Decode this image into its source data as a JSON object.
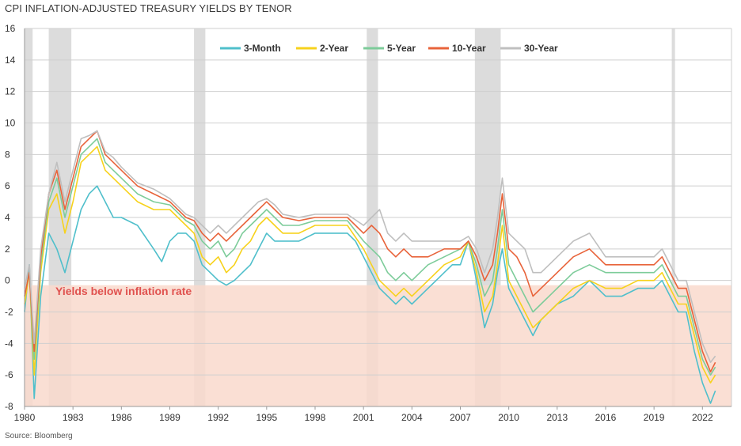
{
  "title": "CPI INFLATION-ADJUSTED TREASURY YIELDS BY TENOR",
  "source": "Source: Bloomberg",
  "chart_data": {
    "type": "line",
    "title": "CPI INFLATION-ADJUSTED TREASURY YIELDS BY TENOR",
    "xlabel": "",
    "ylabel": "",
    "xlim": [
      1980,
      2023.8
    ],
    "ylim": [
      -8,
      16
    ],
    "x_ticks": [
      "1980",
      "1983",
      "1986",
      "1989",
      "1992",
      "1995",
      "1998",
      "2001",
      "2004",
      "2007",
      "2010",
      "2013",
      "2016",
      "2019",
      "2022"
    ],
    "y_ticks": [
      "16",
      "14",
      "12",
      "10",
      "8",
      "6",
      "4",
      "2",
      "0",
      "-2",
      "-4",
      "-6",
      "-8"
    ],
    "grid": true,
    "legend_position": "top-center",
    "annotation": "Yields below inflation rate",
    "shaded_region": {
      "label": "Yields below inflation rate",
      "y_from": 0,
      "y_to": -8,
      "color": "#f9d9cc"
    },
    "recessions": [
      [
        1980.0,
        1980.5
      ],
      [
        1981.5,
        1982.9
      ],
      [
        1990.5,
        1991.2
      ],
      [
        2001.2,
        2001.9
      ],
      [
        2007.9,
        2009.5
      ],
      [
        2020.1,
        2020.3
      ]
    ],
    "series": [
      {
        "name": "3-Month",
        "color": "#4fbfcb",
        "x": [
          1980.0,
          1980.3,
          1980.6,
          1981.0,
          1981.5,
          1982.0,
          1982.5,
          1983.0,
          1983.5,
          1984.0,
          1984.5,
          1985.0,
          1985.5,
          1986.0,
          1987.0,
          1988.0,
          1988.5,
          1989.0,
          1989.5,
          1990.0,
          1990.5,
          1991.0,
          1991.5,
          1992.0,
          1992.5,
          1993.0,
          1993.5,
          1994.0,
          1994.5,
          1995.0,
          1995.5,
          1996.0,
          1997.0,
          1998.0,
          1999.0,
          2000.0,
          2000.5,
          2001.0,
          2001.5,
          2002.0,
          2002.5,
          2003.0,
          2003.5,
          2004.0,
          2004.5,
          2005.0,
          2005.5,
          2006.0,
          2006.5,
          2007.0,
          2007.5,
          2008.0,
          2008.5,
          2009.0,
          2009.3,
          2009.6,
          2010.0,
          2010.5,
          2011.0,
          2011.5,
          2012.0,
          2012.5,
          2013.0,
          2014.0,
          2015.0,
          2016.0,
          2017.0,
          2018.0,
          2019.0,
          2019.5,
          2020.0,
          2020.5,
          2021.0,
          2021.5,
          2022.0,
          2022.5,
          2022.8
        ],
        "y": [
          -2.0,
          1.0,
          -7.5,
          -1.0,
          3.0,
          2.0,
          0.5,
          2.5,
          4.5,
          5.5,
          6.0,
          5.0,
          4.0,
          4.0,
          3.5,
          2.0,
          1.2,
          2.5,
          3.0,
          3.0,
          2.5,
          1.0,
          0.5,
          0.0,
          -0.3,
          0.0,
          0.5,
          1.0,
          2.0,
          3.0,
          2.5,
          2.5,
          2.5,
          3.0,
          3.0,
          3.0,
          2.5,
          1.5,
          0.5,
          -0.5,
          -1.0,
          -1.5,
          -1.0,
          -1.5,
          -1.0,
          -0.5,
          0.0,
          0.5,
          1.0,
          1.0,
          2.5,
          0.0,
          -3.0,
          -1.5,
          0.5,
          2.0,
          -0.5,
          -1.5,
          -2.5,
          -3.5,
          -2.5,
          -2.0,
          -1.5,
          -1.0,
          0.0,
          -1.0,
          -1.0,
          -0.5,
          -0.5,
          0.0,
          -1.0,
          -2.0,
          -2.0,
          -4.5,
          -6.5,
          -7.8,
          -7.0
        ]
      },
      {
        "name": "2-Year",
        "color": "#f7d21c",
        "x": [
          1980.0,
          1980.3,
          1980.6,
          1981.0,
          1981.5,
          1982.0,
          1982.5,
          1983.0,
          1983.5,
          1984.0,
          1984.5,
          1985.0,
          1985.5,
          1986.0,
          1987.0,
          1988.0,
          1989.0,
          1990.0,
          1990.5,
          1991.0,
          1991.5,
          1992.0,
          1992.5,
          1993.0,
          1993.5,
          1994.0,
          1994.5,
          1995.0,
          1995.5,
          1996.0,
          1997.0,
          1998.0,
          1999.0,
          2000.0,
          2001.0,
          2001.5,
          2002.0,
          2002.5,
          2003.0,
          2003.5,
          2004.0,
          2004.5,
          2005.0,
          2006.0,
          2007.0,
          2007.5,
          2008.0,
          2008.5,
          2009.0,
          2009.3,
          2009.6,
          2010.0,
          2010.5,
          2011.0,
          2011.5,
          2012.0,
          2012.5,
          2013.0,
          2014.0,
          2015.0,
          2016.0,
          2017.0,
          2018.0,
          2019.0,
          2019.5,
          2020.0,
          2020.5,
          2021.0,
          2021.5,
          2022.0,
          2022.5,
          2022.8
        ],
        "y": [
          -1.5,
          0.5,
          -6.0,
          0.5,
          4.5,
          5.5,
          3.0,
          5.0,
          7.5,
          8.0,
          8.5,
          7.0,
          6.5,
          6.0,
          5.0,
          4.5,
          4.5,
          3.5,
          3.0,
          1.5,
          1.0,
          1.5,
          0.5,
          1.0,
          2.0,
          2.5,
          3.5,
          4.0,
          3.5,
          3.0,
          3.0,
          3.5,
          3.5,
          3.5,
          2.0,
          1.0,
          0.0,
          -0.5,
          -1.0,
          -0.5,
          -1.0,
          -0.5,
          0.0,
          1.0,
          1.5,
          2.5,
          0.5,
          -2.0,
          -1.0,
          1.0,
          3.5,
          0.0,
          -1.0,
          -2.0,
          -3.0,
          -2.5,
          -2.0,
          -1.5,
          -0.5,
          0.0,
          -0.5,
          -0.5,
          0.0,
          0.0,
          0.5,
          -0.5,
          -1.5,
          -1.5,
          -3.5,
          -5.5,
          -6.5,
          -6.0
        ]
      },
      {
        "name": "5-Year",
        "color": "#7dcc9a",
        "x": [
          1980.0,
          1980.3,
          1980.6,
          1981.0,
          1981.5,
          1982.0,
          1982.5,
          1983.0,
          1983.5,
          1984.0,
          1984.5,
          1985.0,
          1985.5,
          1986.0,
          1987.0,
          1988.0,
          1989.0,
          1990.0,
          1990.5,
          1991.0,
          1991.5,
          1992.0,
          1992.5,
          1993.0,
          1993.5,
          1994.0,
          1994.5,
          1995.0,
          1995.5,
          1996.0,
          1997.0,
          1998.0,
          1999.0,
          2000.0,
          2001.0,
          2001.5,
          2002.0,
          2002.5,
          2003.0,
          2003.5,
          2004.0,
          2004.5,
          2005.0,
          2006.0,
          2007.0,
          2007.5,
          2008.0,
          2008.5,
          2009.0,
          2009.3,
          2009.6,
          2010.0,
          2010.5,
          2011.0,
          2011.5,
          2012.0,
          2012.5,
          2013.0,
          2014.0,
          2015.0,
          2016.0,
          2017.0,
          2018.0,
          2019.0,
          2019.5,
          2020.0,
          2020.5,
          2021.0,
          2021.5,
          2022.0,
          2022.5,
          2022.8
        ],
        "y": [
          -1.0,
          0.5,
          -5.0,
          1.0,
          5.0,
          6.5,
          4.0,
          6.0,
          8.0,
          8.5,
          9.0,
          7.5,
          7.0,
          6.5,
          5.5,
          5.0,
          4.8,
          3.8,
          3.5,
          2.5,
          2.0,
          2.5,
          1.5,
          2.0,
          3.0,
          3.5,
          4.0,
          4.5,
          4.0,
          3.5,
          3.5,
          3.8,
          3.8,
          3.8,
          2.5,
          2.0,
          1.5,
          0.5,
          0.0,
          0.5,
          0.0,
          0.5,
          1.0,
          1.5,
          2.0,
          2.5,
          1.0,
          -1.0,
          0.0,
          2.0,
          4.5,
          1.0,
          0.0,
          -1.0,
          -2.0,
          -1.5,
          -1.0,
          -0.5,
          0.5,
          1.0,
          0.5,
          0.5,
          0.5,
          0.5,
          1.0,
          0.0,
          -1.0,
          -1.0,
          -3.0,
          -5.0,
          -6.0,
          -5.5
        ]
      },
      {
        "name": "10-Year",
        "color": "#e8633a",
        "x": [
          1980.0,
          1980.3,
          1980.6,
          1981.0,
          1981.5,
          1982.0,
          1982.5,
          1983.0,
          1983.5,
          1984.0,
          1984.5,
          1985.0,
          1985.5,
          1986.0,
          1987.0,
          1988.0,
          1989.0,
          1990.0,
          1990.5,
          1991.0,
          1991.5,
          1992.0,
          1992.5,
          1993.0,
          1993.5,
          1994.0,
          1994.5,
          1995.0,
          1995.5,
          1996.0,
          1997.0,
          1998.0,
          1999.0,
          2000.0,
          2001.0,
          2001.5,
          2002.0,
          2002.5,
          2003.0,
          2003.5,
          2004.0,
          2004.5,
          2005.0,
          2006.0,
          2007.0,
          2007.5,
          2008.0,
          2008.5,
          2009.0,
          2009.3,
          2009.6,
          2010.0,
          2010.5,
          2011.0,
          2011.5,
          2012.0,
          2012.5,
          2013.0,
          2014.0,
          2015.0,
          2016.0,
          2017.0,
          2018.0,
          2019.0,
          2019.5,
          2020.0,
          2020.5,
          2021.0,
          2021.5,
          2022.0,
          2022.5,
          2022.8
        ],
        "y": [
          -1.0,
          0.5,
          -4.5,
          1.5,
          5.5,
          7.0,
          4.5,
          6.5,
          8.5,
          9.0,
          9.5,
          8.0,
          7.5,
          7.0,
          6.0,
          5.5,
          5.0,
          4.0,
          3.8,
          3.0,
          2.5,
          3.0,
          2.5,
          3.0,
          3.5,
          4.0,
          4.5,
          5.0,
          4.5,
          4.0,
          3.8,
          4.0,
          4.0,
          4.0,
          3.0,
          3.5,
          3.0,
          2.0,
          1.5,
          2.0,
          1.5,
          1.5,
          1.5,
          2.0,
          2.0,
          2.5,
          1.5,
          0.0,
          1.0,
          3.0,
          5.5,
          2.0,
          1.5,
          0.5,
          -1.0,
          -0.5,
          0.0,
          0.5,
          1.5,
          2.0,
          1.0,
          1.0,
          1.0,
          1.0,
          1.5,
          0.5,
          -0.5,
          -0.5,
          -2.5,
          -4.5,
          -5.8,
          -5.2
        ]
      },
      {
        "name": "30-Year",
        "color": "#bfbfbf",
        "x": [
          1980.0,
          1980.3,
          1980.6,
          1981.0,
          1981.5,
          1982.0,
          1982.5,
          1983.0,
          1983.5,
          1984.0,
          1984.5,
          1985.0,
          1985.5,
          1986.0,
          1987.0,
          1988.0,
          1989.0,
          1990.0,
          1990.5,
          1991.0,
          1991.5,
          1992.0,
          1992.5,
          1993.0,
          1993.5,
          1994.0,
          1994.5,
          1995.0,
          1995.5,
          1996.0,
          1997.0,
          1998.0,
          1999.0,
          2000.0,
          2001.0,
          2001.5,
          2002.0,
          2002.5,
          2003.0,
          2003.5,
          2004.0,
          2004.5,
          2005.0,
          2006.0,
          2007.0,
          2007.5,
          2008.0,
          2008.5,
          2009.0,
          2009.3,
          2009.6,
          2010.0,
          2010.5,
          2011.0,
          2011.5,
          2012.0,
          2012.5,
          2013.0,
          2014.0,
          2015.0,
          2016.0,
          2017.0,
          2018.0,
          2019.0,
          2019.5,
          2020.0,
          2020.5,
          2021.0,
          2021.5,
          2022.0,
          2022.5,
          2022.8
        ],
        "y": [
          -0.5,
          1.0,
          -4.0,
          2.0,
          5.5,
          7.5,
          5.0,
          7.0,
          9.0,
          9.2,
          9.5,
          8.2,
          7.8,
          7.2,
          6.2,
          5.8,
          5.2,
          4.2,
          4.0,
          3.5,
          3.0,
          3.5,
          3.0,
          3.5,
          4.0,
          4.5,
          5.0,
          5.2,
          4.8,
          4.2,
          4.0,
          4.2,
          4.2,
          4.2,
          3.5,
          4.0,
          4.5,
          3.0,
          2.5,
          3.0,
          2.5,
          2.5,
          2.5,
          2.5,
          2.5,
          2.8,
          2.0,
          0.5,
          2.0,
          4.0,
          6.5,
          3.0,
          2.5,
          2.0,
          0.5,
          0.5,
          1.0,
          1.5,
          2.5,
          3.0,
          1.5,
          1.5,
          1.5,
          1.5,
          2.0,
          1.0,
          0.0,
          0.0,
          -2.0,
          -4.0,
          -5.2,
          -4.8
        ]
      }
    ]
  }
}
